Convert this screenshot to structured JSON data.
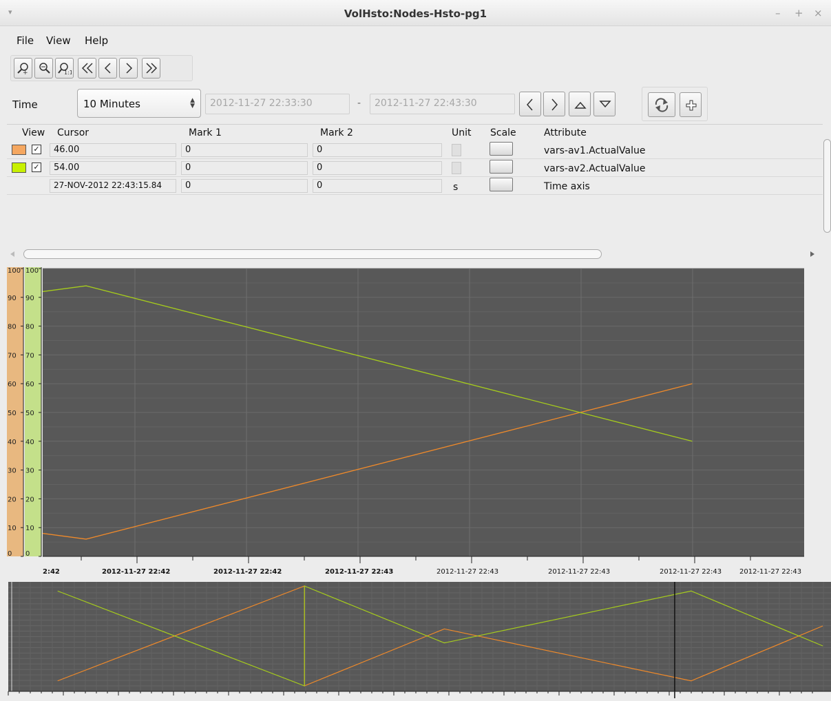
{
  "window": {
    "title": "VolHsto:Nodes-Hsto-pg1",
    "controls": [
      "–",
      "+",
      "×"
    ],
    "menu_glyph": "▾"
  },
  "menubar": {
    "items": [
      "File",
      "View",
      "Help"
    ]
  },
  "toolbar": {
    "buttons": [
      "zoom-in",
      "zoom-out",
      "zoom-reset",
      "first-page",
      "previous",
      "next",
      "last-page"
    ]
  },
  "time": {
    "label": "Time",
    "range": "10 Minutes",
    "from": "2012-11-27 22:33:30",
    "separator": "-",
    "to": "2012-11-27 22:43:30"
  },
  "table": {
    "headers": {
      "view": "View",
      "cursor": "Cursor",
      "mark1": "Mark 1",
      "mark2": "Mark 2",
      "unit": "Unit",
      "scale": "Scale",
      "attribute": "Attribute"
    },
    "rows": [
      {
        "color": "#f5a760",
        "checked": "✓",
        "cursor": "46.00",
        "mark1": "0",
        "mark2": "0",
        "unit": "",
        "attribute": "vars-av1.ActualValue"
      },
      {
        "color": "#c8f000",
        "checked": "✓",
        "cursor": "54.00",
        "mark1": "0",
        "mark2": "0",
        "unit": "",
        "attribute": "vars-av2.ActualValue"
      },
      {
        "color": "",
        "checked": "",
        "cursor": "27-NOV-2012 22:43:15.84",
        "mark1": "0",
        "mark2": "0",
        "unit": "s",
        "attribute": "Time axis"
      }
    ]
  },
  "colors": {
    "plot_bg": "#585858",
    "av1": "#f08a2a",
    "av2": "#a6cc1c",
    "axis_orange": "#e8b880",
    "axis_green": "#c4e08a"
  },
  "chart_data": {
    "type": "line",
    "ylim": [
      0,
      100
    ],
    "yticks": [
      "0",
      "10",
      "20",
      "30",
      "40",
      "50",
      "60",
      "70",
      "80",
      "90",
      "100"
    ],
    "x_tick_labels": [
      "2:42",
      "2012-11-27 22:42",
      "2012-11-27 22:42",
      "2012-11-27 22:43",
      "2012-11-27 22:43",
      "2012-11-27 22:43",
      "2012-11-27 22:43",
      "2012-11-27 22:43"
    ],
    "bold_x_labels": [
      true,
      true,
      true,
      true,
      false,
      false,
      false,
      false
    ],
    "grid": true,
    "series": [
      {
        "name": "vars-av1.ActualValue",
        "x": [
          0,
          0.057,
          0.853
        ],
        "values": [
          8,
          6,
          60
        ]
      },
      {
        "name": "vars-av2.ActualValue",
        "x": [
          0,
          0.057,
          0.853
        ],
        "values": [
          92,
          94,
          40
        ]
      }
    ],
    "overview": {
      "ylim": [
        0,
        100
      ],
      "series": [
        {
          "name": "vars-av1.ActualValue",
          "x": [
            0.06,
            0.36,
            0.36,
            0.53,
            0.83,
            0.99
          ],
          "values": [
            5,
            100,
            0,
            57,
            5,
            60
          ]
        },
        {
          "name": "vars-av2.ActualValue",
          "x": [
            0.06,
            0.36,
            0.36,
            0.53,
            0.83,
            0.99
          ],
          "values": [
            95,
            0,
            100,
            43,
            95,
            40
          ]
        }
      ],
      "window_start": 0.81
    }
  }
}
